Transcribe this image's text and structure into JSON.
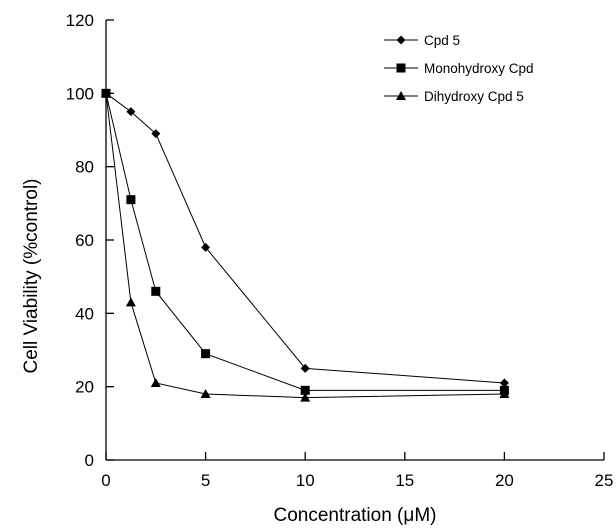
{
  "chart_data": {
    "type": "line",
    "title": "",
    "xlabel": "Concentration (μM)",
    "ylabel": "Cell Viability (%control)",
    "xlim": [
      0,
      25
    ],
    "ylim": [
      0,
      120
    ],
    "xticks": [
      0,
      5,
      10,
      15,
      20,
      25
    ],
    "yticks": [
      0,
      20,
      40,
      60,
      80,
      100,
      120
    ],
    "grid": false,
    "legend_position": "top-right",
    "x": [
      0,
      1.25,
      2.5,
      5,
      10,
      20
    ],
    "series": [
      {
        "name": "Cpd 5",
        "marker": "diamond",
        "values": [
          100,
          95,
          89,
          58,
          25,
          21
        ]
      },
      {
        "name": "Monohydroxy Cpd",
        "marker": "square",
        "values": [
          100,
          71,
          46,
          29,
          19,
          19
        ]
      },
      {
        "name": "Dihydroxy Cpd 5",
        "marker": "triangle",
        "values": [
          100,
          43,
          21,
          18,
          17,
          18
        ]
      }
    ],
    "colors": {
      "ink": "#000000",
      "background": "#ffffff"
    }
  }
}
